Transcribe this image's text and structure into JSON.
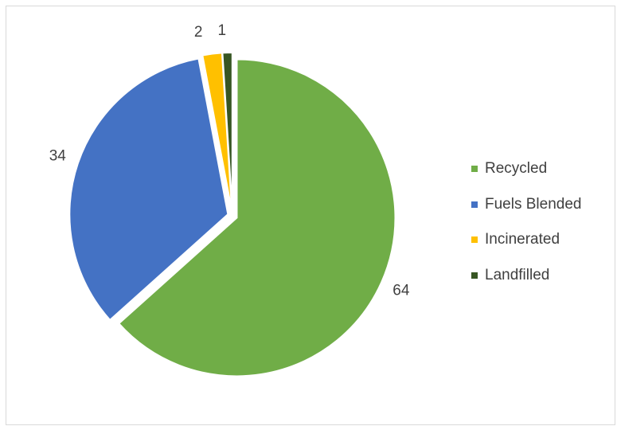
{
  "chart_data": {
    "type": "pie",
    "title": "",
    "categories": [
      "Recycled",
      "Fuels Blended",
      "Incinerated",
      "Landfilled"
    ],
    "values": [
      64,
      34,
      2,
      1
    ],
    "data_labels": [
      "64",
      "34",
      "2",
      "1"
    ],
    "colors": [
      "#70ad47",
      "#4472c4",
      "#ffc000",
      "#375623"
    ],
    "start_angle_deg": 0,
    "direction": "clockwise",
    "exploded": true,
    "legend": "right"
  }
}
